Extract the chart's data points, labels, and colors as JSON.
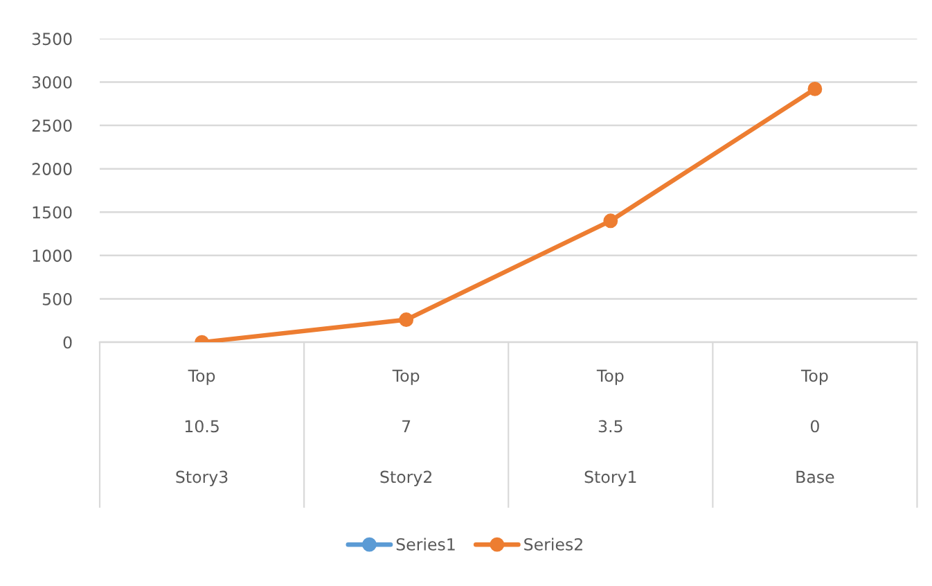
{
  "chart_data": {
    "type": "line",
    "categories": [
      "Top\n10.5\nStory3",
      "Top\n7\nStory2",
      "Top\n3.5\nStory1",
      "Top\n0\nBase"
    ],
    "series": [
      {
        "name": "Series1",
        "color": "#5b9bd5",
        "values": [
          null,
          null,
          null,
          null
        ]
      },
      {
        "name": "Series2",
        "color": "#ed7d31",
        "values": [
          0,
          260,
          1400,
          2920
        ]
      }
    ],
    "ylim": [
      0,
      3500
    ],
    "yticks": [
      0,
      500,
      1000,
      1500,
      2000,
      2500,
      3000,
      3500
    ],
    "grid": "y",
    "legend": "bottom",
    "marker": "circle",
    "line_style": "solid"
  }
}
